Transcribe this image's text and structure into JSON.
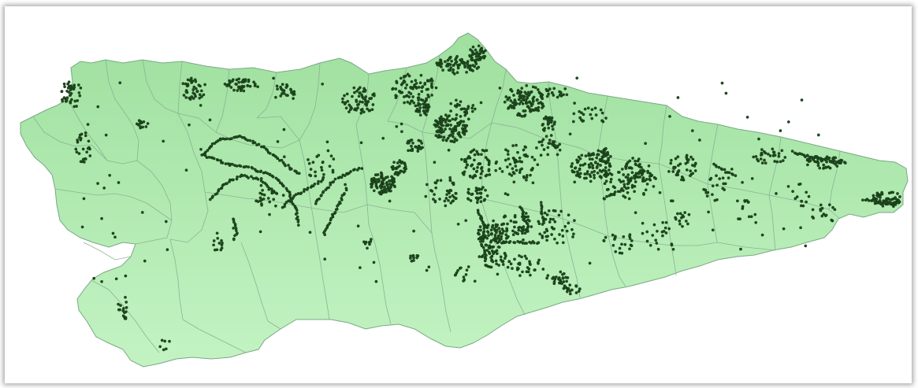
{
  "map": {
    "region_fill_top": "#a8e8a8",
    "region_fill_bottom": "#c2f2c2",
    "region_border": "#7fa88a",
    "point_color": "#1f4a1f",
    "point_count_hint": "dense"
  }
}
